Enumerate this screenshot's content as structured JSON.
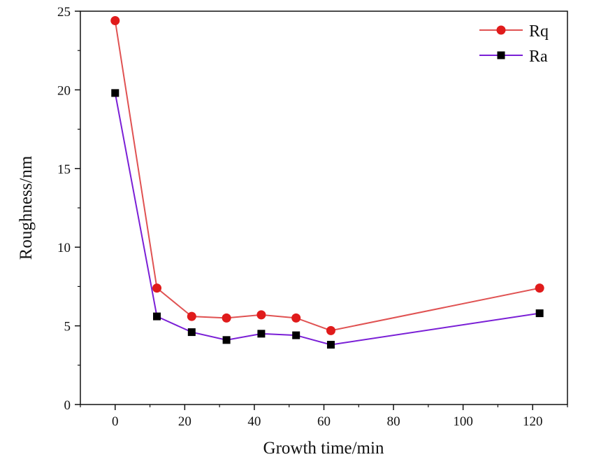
{
  "chart_data": {
    "type": "line",
    "title": "",
    "xlabel": "Growth time/min",
    "ylabel": "Roughness/nm",
    "xlim": [
      -10,
      130
    ],
    "ylim": [
      0,
      25
    ],
    "xticks": [
      0,
      20,
      40,
      60,
      80,
      100,
      120
    ],
    "yticks": [
      0,
      5,
      10,
      15,
      20,
      25
    ],
    "grid": false,
    "legend_position": "top-right",
    "x": [
      0,
      12,
      22,
      32,
      42,
      52,
      62,
      122
    ],
    "series": [
      {
        "name": "Rq",
        "marker": "circle",
        "color": "#e01b1b",
        "line_color": "#e05252",
        "values": [
          24.4,
          7.4,
          5.6,
          5.5,
          5.7,
          5.5,
          4.7,
          7.4
        ]
      },
      {
        "name": "Ra",
        "marker": "square",
        "color": "#000000",
        "line_color": "#7a1fd6",
        "values": [
          19.8,
          5.6,
          4.6,
          4.1,
          4.5,
          4.4,
          3.8,
          5.8
        ]
      }
    ]
  }
}
